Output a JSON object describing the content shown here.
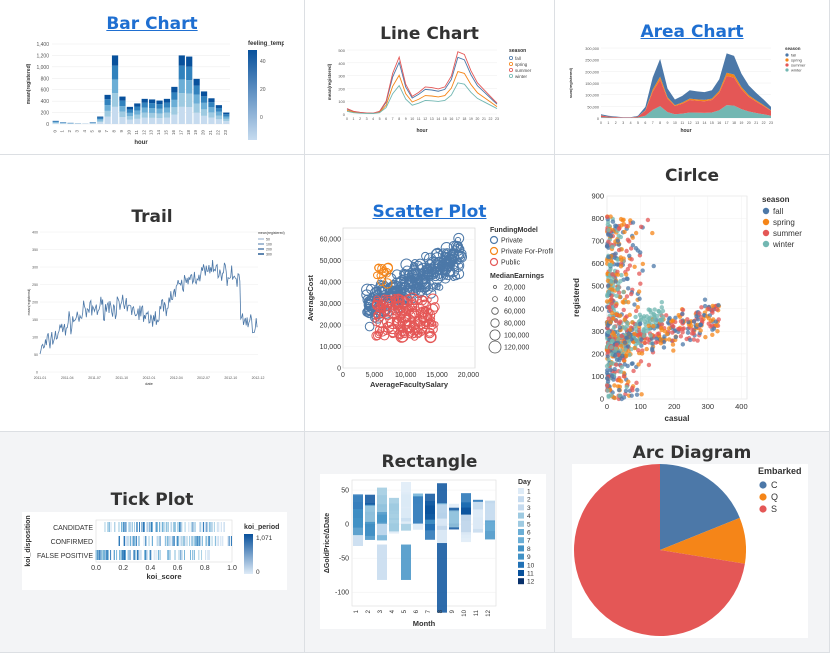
{
  "titles": {
    "bar": "Bar Chart",
    "line": "Line Chart",
    "area": "Area Chart",
    "trail": "Trail",
    "scatter": "Scatter Plot",
    "circle": "Cirlce",
    "tick": "Tick Plot",
    "rect": "Rectangle",
    "arc": "Arc Diagram"
  },
  "colors": {
    "link": "#1f6fd1",
    "blue": "#4c78a8",
    "orange": "#f58518",
    "red": "#e45756",
    "teal": "#72b7b2",
    "shade": "#f3f4f6"
  },
  "bar_chart": {
    "type": "bar",
    "xlabel": "hour",
    "ylabel": "mean(registered)",
    "legend_title": "feeling_temp",
    "categories": [
      "0",
      "1",
      "2",
      "3",
      "4",
      "5",
      "6",
      "7",
      "8",
      "9",
      "10",
      "11",
      "12",
      "13",
      "14",
      "15",
      "16",
      "17",
      "18",
      "19",
      "20",
      "21",
      "22",
      "23"
    ],
    "values": [
      55,
      30,
      20,
      10,
      5,
      30,
      130,
      510,
      1200,
      480,
      300,
      360,
      440,
      430,
      410,
      440,
      650,
      1200,
      1180,
      790,
      570,
      450,
      330,
      200
    ],
    "yticks": [
      "0",
      "200",
      "400",
      "600",
      "800",
      "1,000",
      "1,200",
      "1,400"
    ],
    "legend_ticks": [
      "40",
      "20",
      "0"
    ]
  },
  "line_chart": {
    "type": "line",
    "xlabel": "hour",
    "ylabel": "mean(registered)",
    "legend_title": "season",
    "legend": [
      "fall",
      "spring",
      "summer",
      "winter"
    ],
    "yticks": [
      "0",
      "100",
      "200",
      "300",
      "400",
      "500"
    ]
  },
  "area_chart": {
    "type": "area",
    "xlabel": "hour",
    "ylabel": "sum(registered)",
    "legend_title": "season",
    "legend": [
      "fall",
      "spring",
      "summer",
      "winter"
    ],
    "yticks": [
      "0",
      "50,000",
      "100,000",
      "150,000",
      "200,000",
      "250,000",
      "300,000"
    ]
  },
  "trail_chart": {
    "type": "line",
    "xlabel": "date",
    "ylabel": "mean(registered)",
    "legend_title": "mean(registered)",
    "legend": [
      "50",
      "100",
      "200",
      "300"
    ],
    "yticks": [
      "0",
      "50",
      "100",
      "150",
      "200",
      "250",
      "300",
      "350",
      "400"
    ],
    "xticks": [
      "2011-01",
      "2011-04",
      "2011-07",
      "2011-10",
      "2012-01",
      "2012-04",
      "2012-07",
      "2012-10",
      "2012-12"
    ]
  },
  "scatter_chart": {
    "type": "scatter",
    "xlabel": "AverageFacultySalary",
    "ylabel": "AverageCost",
    "xticks": [
      "0",
      "5,000",
      "10,000",
      "15,000",
      "20,000"
    ],
    "yticks": [
      "0",
      "10,000",
      "20,000",
      "30,000",
      "40,000",
      "50,000",
      "60,000"
    ],
    "legend_title": "FundingModel",
    "legend": [
      "Private",
      "Private For-Profit",
      "Public"
    ],
    "size_title": "MedianEarnings",
    "size_legend": [
      "20,000",
      "40,000",
      "60,000",
      "80,000",
      "100,000",
      "120,000"
    ]
  },
  "circle_chart": {
    "type": "scatter",
    "xlabel": "casual",
    "ylabel": "registered",
    "xticks": [
      "0",
      "100",
      "200",
      "300",
      "400"
    ],
    "yticks": [
      "0",
      "100",
      "200",
      "300",
      "400",
      "500",
      "600",
      "700",
      "800",
      "900"
    ],
    "legend_title": "season",
    "legend": [
      "fall",
      "spring",
      "summer",
      "winter"
    ]
  },
  "tick_chart": {
    "type": "scatter",
    "xlabel": "koi_score",
    "ylabel": "koi_disposition",
    "categories": [
      "CANDIDATE",
      "CONFIRMED",
      "FALSE POSITIVE"
    ],
    "xticks": [
      "0.0",
      "0.2",
      "0.4",
      "0.6",
      "0.8",
      "1.0"
    ],
    "legend_title": "koi_period",
    "legend_ticks": [
      "1,071",
      "0"
    ]
  },
  "rect_chart": {
    "type": "bar",
    "xlabel": "Month",
    "ylabel": "ΔGoldPrice/ΔDate",
    "categories": [
      "1",
      "2",
      "3",
      "4",
      "5",
      "6",
      "7",
      "8",
      "9",
      "10",
      "11",
      "12"
    ],
    "yticks": [
      "50",
      "0",
      "-50",
      "-100"
    ],
    "legend_title": "Day",
    "legend": [
      "1",
      "2",
      "3",
      "4",
      "5",
      "6",
      "7",
      "8",
      "9",
      "10",
      "11",
      "12"
    ]
  },
  "arc_chart": {
    "type": "pie",
    "legend_title": "Embarked",
    "categories": [
      "C",
      "Q",
      "S"
    ],
    "values": [
      168,
      77,
      644
    ]
  }
}
